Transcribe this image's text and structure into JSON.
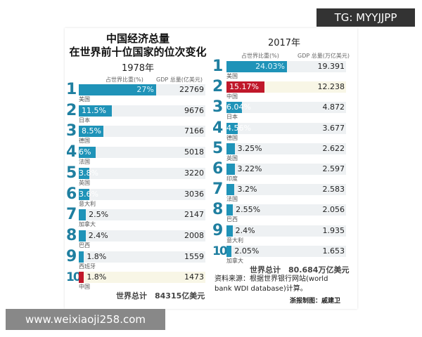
{
  "watermark_top": "TG: MYYJJPP",
  "watermark_bottom": "www.weixiaoji258.com",
  "title_line1": "中国经济总量",
  "title_line2": "在世界前十位国家的位次变化",
  "colors": {
    "bar": "#1f93b8",
    "china": "#c0182a",
    "china_track": "#f8f6e6",
    "track": "#eef1f3"
  },
  "chart_data": [
    {
      "type": "bar",
      "title": "1978年",
      "share_header": "占世界比重(%)",
      "gdp_header": "GDP 总量(亿美元)",
      "ranks": [
        "1",
        "2",
        "3",
        "4",
        "5",
        "6",
        "7",
        "8",
        "9",
        "10"
      ],
      "categories": [
        "美国",
        "日本",
        "德国",
        "法国",
        "英国",
        "意大利",
        "加拿大",
        "巴西",
        "西班牙",
        "中国"
      ],
      "share_labels": [
        "27%",
        "11.5%",
        "8.5%",
        "6%",
        "3.8%",
        "3.6%",
        "2.5%",
        "2.4%",
        "1.8%",
        "1.8%"
      ],
      "share": [
        27,
        11.5,
        8.5,
        6,
        3.8,
        3.6,
        2.5,
        2.4,
        1.8,
        1.8
      ],
      "gdp": [
        "22769",
        "9676",
        "7166",
        "5018",
        "3220",
        "3036",
        "2147",
        "2008",
        "1559",
        "1473"
      ],
      "highlight": "中国",
      "total": "世界总计　84315亿美元"
    },
    {
      "type": "bar",
      "title": "2017年",
      "share_header": "占世界比重(%)",
      "gdp_header": "GDP 总量(万亿美元)",
      "ranks": [
        "1",
        "2",
        "3",
        "4",
        "5",
        "6",
        "7",
        "8",
        "9",
        "10"
      ],
      "categories": [
        "美国",
        "中国",
        "日本",
        "德国",
        "英国",
        "印度",
        "法国",
        "巴西",
        "意大利",
        "加拿大"
      ],
      "share_labels": [
        "24.03%",
        "15.17%",
        "6.04%",
        "4.56%",
        "3.25%",
        "3.22%",
        "3.2%",
        "2.55%",
        "2.4%",
        "2.05%"
      ],
      "share": [
        24.03,
        15.17,
        6.04,
        4.56,
        3.25,
        3.22,
        3.2,
        2.55,
        2.4,
        2.05
      ],
      "gdp": [
        "19.391",
        "12.238",
        "4.872",
        "3.677",
        "2.622",
        "2.597",
        "2.583",
        "2.056",
        "1.935",
        "1.653"
      ],
      "highlight": "中国",
      "total": "世界总计　80.684万亿美元"
    }
  ],
  "source_line1": "资料来源：根据世界银行网站(world",
  "source_line2": "bank WDI database)计算。",
  "credit": "浙报制图：戚建卫"
}
